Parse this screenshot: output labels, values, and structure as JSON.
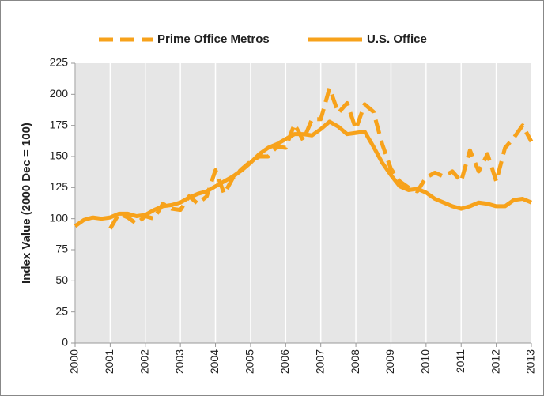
{
  "chart_data": {
    "type": "line",
    "ylabel": "Index Value (2000 Dec = 100)",
    "x": [
      2000,
      2000.25,
      2000.5,
      2000.75,
      2001,
      2001.25,
      2001.5,
      2001.75,
      2002,
      2002.25,
      2002.5,
      2002.75,
      2003,
      2003.25,
      2003.5,
      2003.75,
      2004,
      2004.25,
      2004.5,
      2004.75,
      2005,
      2005.25,
      2005.5,
      2005.75,
      2006,
      2006.25,
      2006.5,
      2006.75,
      2007,
      2007.25,
      2007.5,
      2007.75,
      2008,
      2008.25,
      2008.5,
      2008.75,
      2009,
      2009.25,
      2009.5,
      2009.75,
      2010,
      2010.25,
      2010.5,
      2010.75,
      2011,
      2011.25,
      2011.5,
      2011.75,
      2012,
      2012.25,
      2012.5,
      2012.75,
      2013
    ],
    "series": [
      {
        "name": "Prime Office Metros",
        "color": "#f7a21b",
        "style": "dashed",
        "values": [
          null,
          null,
          null,
          null,
          92,
          104,
          101,
          96,
          102,
          100,
          112,
          108,
          107,
          118,
          112,
          118,
          139,
          120,
          133,
          140,
          146,
          150,
          150,
          158,
          157,
          176,
          163,
          180,
          180,
          205,
          185,
          193,
          172,
          192,
          186,
          160,
          140,
          130,
          125,
          122,
          133,
          137,
          134,
          138,
          130,
          155,
          138,
          152,
          130,
          157,
          165,
          175,
          162
        ]
      },
      {
        "name": "U.S. Office",
        "color": "#f7a21b",
        "style": "solid",
        "values": [
          94,
          99,
          101,
          100,
          101,
          104,
          104,
          102,
          103,
          107,
          110,
          111,
          113,
          117,
          120,
          122,
          126,
          130,
          134,
          139,
          145,
          152,
          157,
          160,
          164,
          168,
          168,
          167,
          172,
          178,
          174,
          168,
          169,
          170,
          158,
          145,
          135,
          126,
          123,
          124,
          121,
          116,
          113,
          110,
          108,
          110,
          113,
          112,
          110,
          110,
          115,
          116,
          113
        ]
      }
    ],
    "xlim": [
      2000,
      2013
    ],
    "xticks": [
      2000,
      2001,
      2002,
      2003,
      2004,
      2005,
      2006,
      2007,
      2008,
      2009,
      2010,
      2011,
      2012,
      2013
    ],
    "ylim": [
      0,
      225
    ],
    "yticks": [
      0,
      25,
      50,
      75,
      100,
      125,
      150,
      175,
      200,
      225
    ],
    "grid": "x",
    "legend": "top"
  }
}
